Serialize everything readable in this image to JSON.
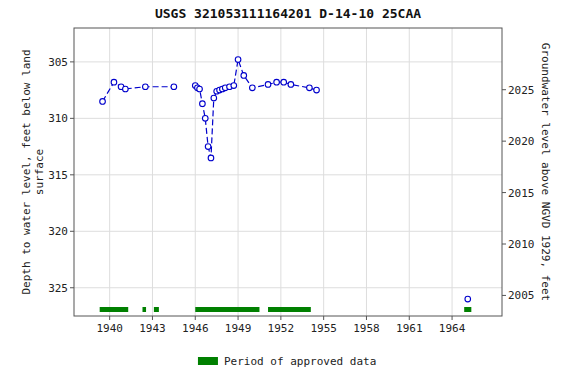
{
  "chart_data": {
    "type": "line",
    "title": "USGS 321053111164201 D-14-10 25CAA",
    "ylabel": "Depth to water level, feet below land\nsurface",
    "y2label": "Groundwater level above NGVD 1929, feet",
    "xlim": [
      1937.5,
      1967.5
    ],
    "xticks": [
      1940,
      1943,
      1946,
      1949,
      1952,
      1955,
      1958,
      1961,
      1964
    ],
    "ylim": [
      327.5,
      302.0
    ],
    "yticks": [
      305,
      310,
      315,
      320,
      325
    ],
    "y2lim": [
      2003.0,
      2031.0
    ],
    "y2ticks": [
      2005,
      2010,
      2015,
      2020,
      2025
    ],
    "grid": true,
    "legend": "bottom",
    "series": [
      {
        "type": "line",
        "color": "#0000cc",
        "line_style": "dashed",
        "marker": "circle",
        "x": [
          1939.5,
          1940.3,
          1940.8,
          1941.1,
          1942.5,
          1944.5,
          null,
          1946.0,
          1946.15,
          1946.3,
          1946.5,
          1946.7,
          1946.9,
          1947.1,
          1947.3,
          1947.5,
          1947.7,
          1947.9,
          1948.1,
          1948.4,
          1948.7,
          1949.0,
          1949.4,
          1950.0,
          1951.1,
          1951.7,
          1952.2,
          1952.7,
          1954.0,
          1954.5,
          null,
          1965.1
        ],
        "values": [
          308.5,
          306.8,
          307.2,
          307.4,
          307.2,
          307.2,
          null,
          307.1,
          307.3,
          307.4,
          308.7,
          310.0,
          312.5,
          313.5,
          308.2,
          307.6,
          307.5,
          307.4,
          307.3,
          307.2,
          307.1,
          304.8,
          306.2,
          307.3,
          307.0,
          306.8,
          306.8,
          307.0,
          307.3,
          307.5,
          null,
          326.0
        ]
      },
      {
        "type": "range",
        "name": "Period of approved data",
        "color": "#008000",
        "ranges": [
          [
            1939.3,
            1941.3
          ],
          [
            1942.3,
            1942.55
          ],
          [
            1943.1,
            1943.45
          ],
          [
            1946.0,
            1950.5
          ],
          [
            1951.1,
            1954.1
          ],
          [
            1964.85,
            1965.35
          ]
        ]
      }
    ]
  }
}
